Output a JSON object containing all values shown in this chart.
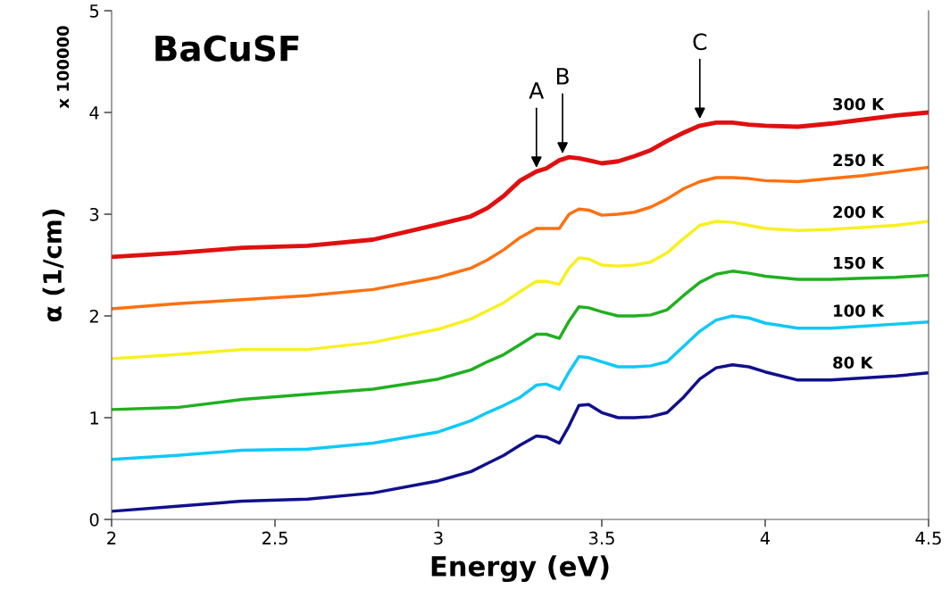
{
  "chart_data": {
    "type": "line",
    "title": "BaCuSF",
    "xlabel": "Energy (eV)",
    "ylabel": "α (1/cm)",
    "x": [
      2.0,
      2.2,
      2.4,
      2.6,
      2.8,
      3.0,
      3.1,
      3.15,
      3.2,
      3.25,
      3.3,
      3.33,
      3.37,
      3.4,
      3.43,
      3.46,
      3.5,
      3.55,
      3.6,
      3.65,
      3.7,
      3.75,
      3.8,
      3.85,
      3.9,
      3.95,
      4.0,
      4.1,
      4.2,
      4.3,
      4.4,
      4.5
    ],
    "series": [
      {
        "name": "300 K",
        "color": "#e01010",
        "values": [
          2.58,
          2.62,
          2.67,
          2.69,
          2.75,
          2.9,
          2.98,
          3.06,
          3.18,
          3.33,
          3.42,
          3.45,
          3.53,
          3.56,
          3.55,
          3.53,
          3.5,
          3.52,
          3.57,
          3.63,
          3.72,
          3.8,
          3.87,
          3.9,
          3.9,
          3.88,
          3.87,
          3.86,
          3.89,
          3.93,
          3.97,
          4.0
        ]
      },
      {
        "name": "250 K",
        "color": "#ff7010",
        "values": [
          2.07,
          2.12,
          2.16,
          2.2,
          2.26,
          2.38,
          2.47,
          2.55,
          2.65,
          2.77,
          2.86,
          2.86,
          2.86,
          3.0,
          3.05,
          3.04,
          2.99,
          3.0,
          3.02,
          3.07,
          3.15,
          3.25,
          3.32,
          3.36,
          3.36,
          3.35,
          3.33,
          3.32,
          3.35,
          3.38,
          3.42,
          3.46
        ]
      },
      {
        "name": "200 K",
        "color": "#f8f020",
        "values": [
          1.58,
          1.62,
          1.67,
          1.67,
          1.74,
          1.87,
          1.97,
          2.05,
          2.13,
          2.24,
          2.34,
          2.34,
          2.31,
          2.47,
          2.57,
          2.56,
          2.5,
          2.49,
          2.5,
          2.53,
          2.62,
          2.76,
          2.89,
          2.93,
          2.92,
          2.89,
          2.86,
          2.84,
          2.85,
          2.87,
          2.89,
          2.93
        ]
      },
      {
        "name": "150 K",
        "color": "#20b020",
        "values": [
          1.08,
          1.1,
          1.18,
          1.23,
          1.28,
          1.38,
          1.47,
          1.55,
          1.62,
          1.72,
          1.82,
          1.82,
          1.78,
          1.95,
          2.09,
          2.08,
          2.04,
          2.0,
          2.0,
          2.01,
          2.06,
          2.2,
          2.33,
          2.41,
          2.44,
          2.42,
          2.39,
          2.36,
          2.36,
          2.37,
          2.38,
          2.4
        ]
      },
      {
        "name": "100 K",
        "color": "#10c8f8",
        "values": [
          0.59,
          0.63,
          0.68,
          0.69,
          0.75,
          0.86,
          0.97,
          1.05,
          1.12,
          1.2,
          1.32,
          1.33,
          1.28,
          1.45,
          1.6,
          1.59,
          1.55,
          1.5,
          1.5,
          1.51,
          1.55,
          1.7,
          1.85,
          1.96,
          2.0,
          1.98,
          1.93,
          1.88,
          1.88,
          1.9,
          1.92,
          1.94
        ]
      },
      {
        "name": "80 K",
        "color": "#10108c",
        "values": [
          0.08,
          0.13,
          0.18,
          0.2,
          0.26,
          0.38,
          0.47,
          0.55,
          0.63,
          0.73,
          0.82,
          0.81,
          0.75,
          0.92,
          1.12,
          1.13,
          1.05,
          1.0,
          1.0,
          1.01,
          1.05,
          1.2,
          1.38,
          1.49,
          1.52,
          1.5,
          1.45,
          1.37,
          1.37,
          1.39,
          1.41,
          1.44
        ]
      }
    ],
    "xlim": [
      2,
      4.5
    ],
    "xticks": [
      2,
      2.5,
      3,
      3.5,
      4,
      4.5
    ],
    "ylim": [
      0,
      5
    ],
    "yticks": [
      0,
      1,
      2,
      3,
      4,
      5
    ],
    "annotations": [
      "x 100000",
      {
        "text": "A",
        "x": 3.3,
        "y": 3.42
      },
      {
        "text": "B",
        "x": 3.38,
        "y": 3.56
      },
      {
        "text": "C",
        "x": 3.8,
        "y": 3.9
      }
    ],
    "grid": false,
    "legend": false,
    "line_style": "solid",
    "marker": "none"
  }
}
